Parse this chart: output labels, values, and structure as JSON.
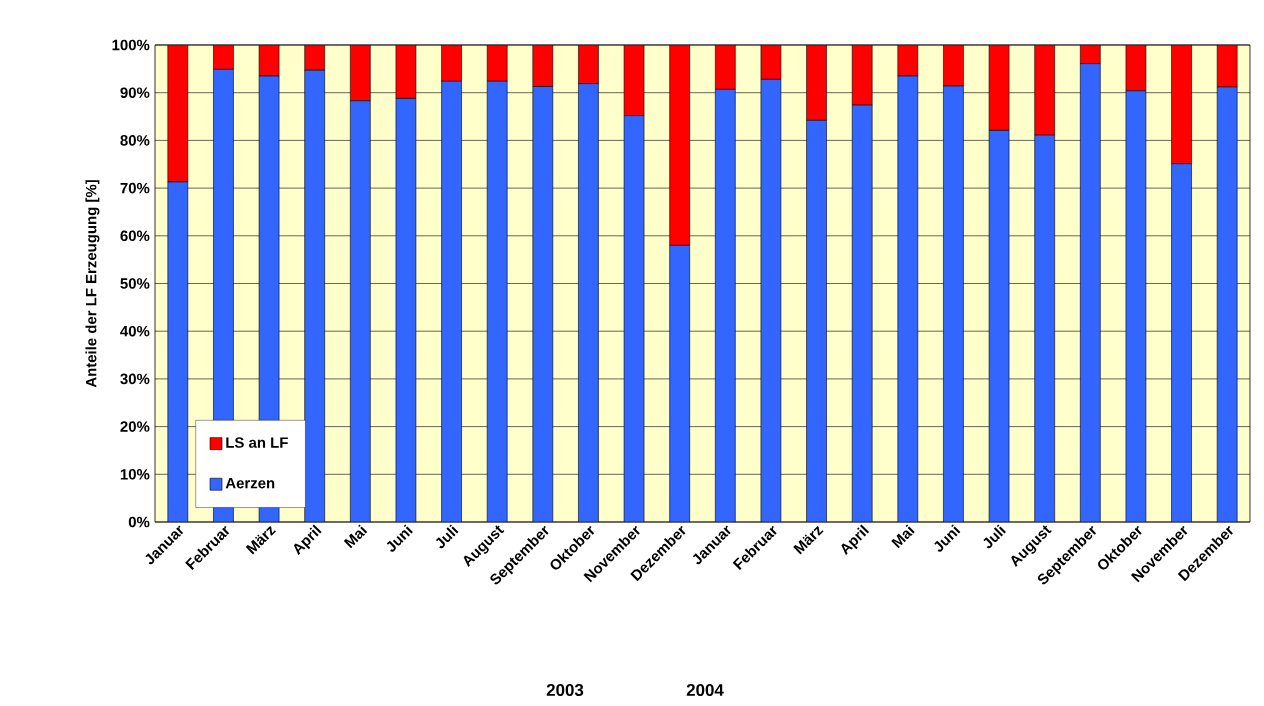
{
  "chart_data": {
    "type": "bar",
    "stacked": true,
    "ylabel": "Anteile der LF Erzeugung [%]",
    "categories": [
      "Januar",
      "Februar",
      "März",
      "April",
      "Mai",
      "Juni",
      "Juli",
      "August",
      "September",
      "Oktober",
      "November",
      "Dezember",
      "Januar",
      "Februar",
      "März",
      "April",
      "Mai",
      "Juni",
      "Juli",
      "August",
      "September",
      "Oktober",
      "November",
      "Dezember"
    ],
    "series": [
      {
        "name": "Aerzen",
        "color": "#3366ff",
        "values": [
          71.3,
          94.9,
          93.5,
          94.7,
          88.3,
          88.8,
          92.4,
          92.4,
          91.3,
          91.9,
          85.2,
          58.0,
          90.7,
          92.8,
          84.2,
          87.4,
          93.5,
          91.4,
          82.1,
          81.1,
          96.1,
          90.4,
          75.1,
          91.2
        ]
      },
      {
        "name": "LS an LF",
        "color": "#ff0000",
        "values": [
          28.7,
          5.1,
          6.5,
          5.3,
          11.7,
          11.2,
          7.6,
          7.6,
          8.7,
          8.1,
          14.8,
          42.0,
          9.3,
          7.2,
          15.8,
          12.6,
          6.5,
          8.6,
          17.9,
          18.9,
          3.9,
          9.6,
          24.9,
          8.8
        ]
      }
    ],
    "ylim": [
      0,
      100
    ],
    "yticks": [
      {
        "value": 0,
        "label": "0%"
      },
      {
        "value": 10,
        "label": "10%"
      },
      {
        "value": 20,
        "label": "20%"
      },
      {
        "value": 30,
        "label": "30%"
      },
      {
        "value": 40,
        "label": "40%"
      },
      {
        "value": 50,
        "label": "50%"
      },
      {
        "value": 60,
        "label": "60%"
      },
      {
        "value": 70,
        "label": "70%"
      },
      {
        "value": 80,
        "label": "80%"
      },
      {
        "value": 90,
        "label": "90%"
      },
      {
        "value": 100,
        "label": "100%"
      }
    ],
    "grid": "y",
    "legend": "bottom left",
    "annotations": [
      "2003",
      "2004"
    ]
  }
}
